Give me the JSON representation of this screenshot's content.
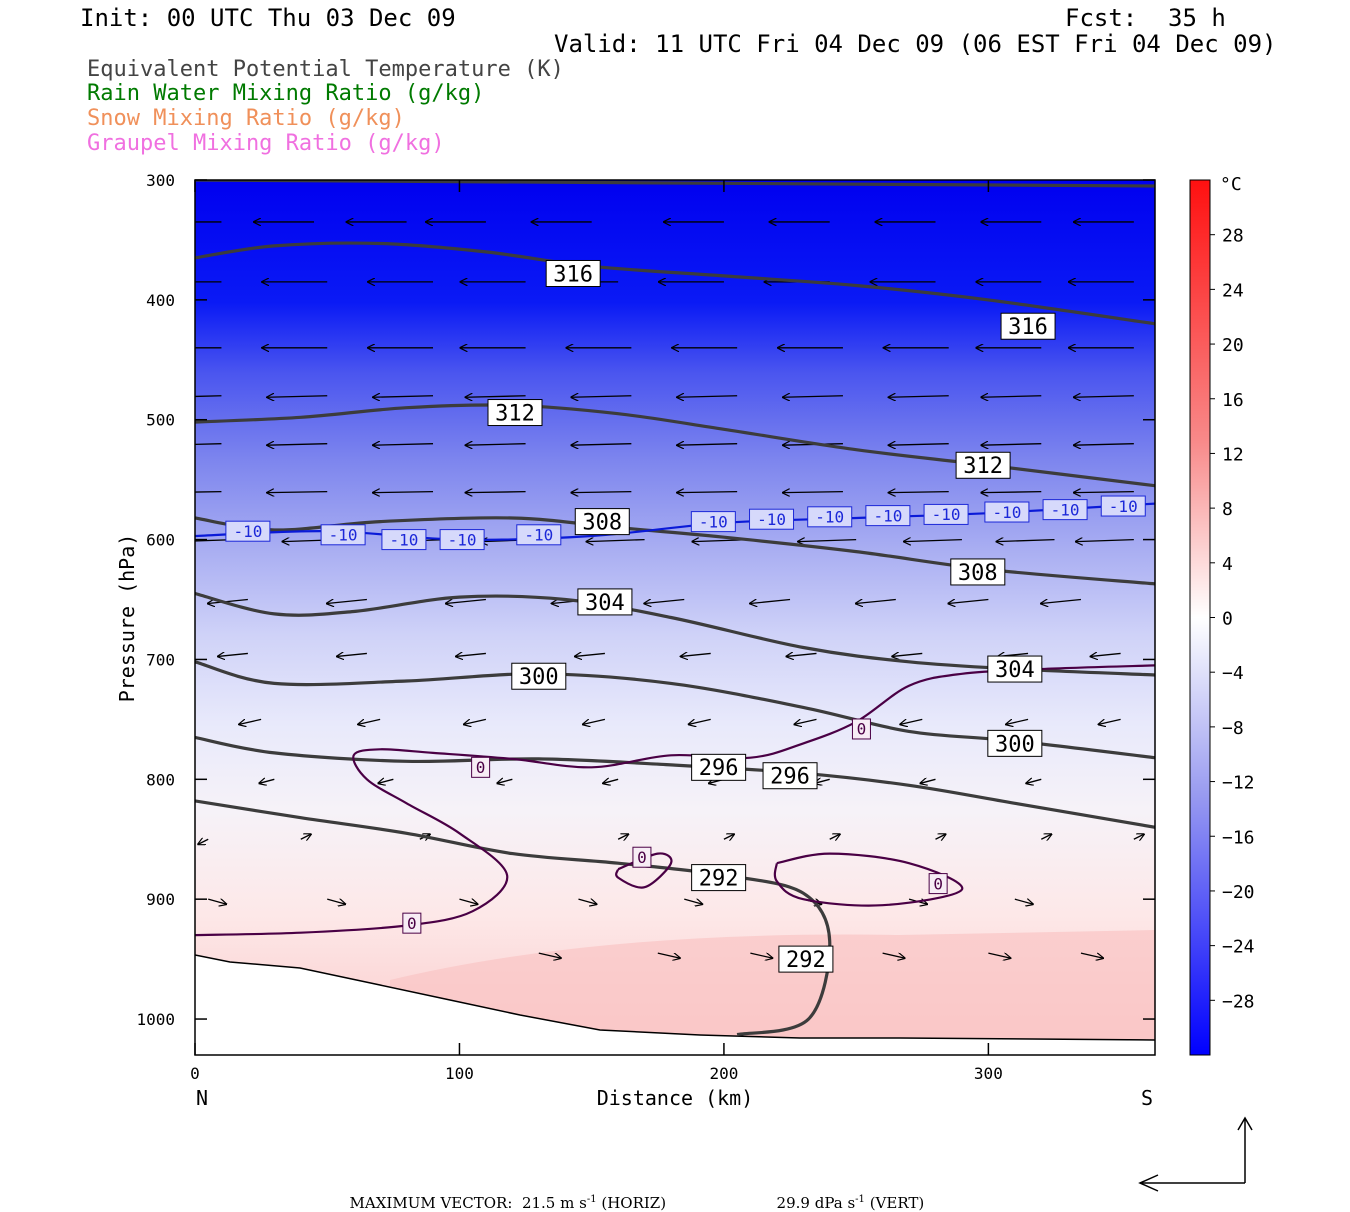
{
  "header": {
    "init": "Init: 00 UTC Thu 03 Dec 09",
    "fcst_label": "Fcst:",
    "fcst_value": "35 h",
    "valid": "Valid: 11 UTC Fri 04 Dec 09 (06 EST Fri 04 Dec 09)"
  },
  "legend": [
    {
      "text": "Equivalent Potential Temperature (K)",
      "color": "#444444"
    },
    {
      "text": "Rain Water Mixing Ratio (g/kg)",
      "color": "#007a00"
    },
    {
      "text": "Snow Mixing Ratio (g/kg)",
      "color": "#f0905a"
    },
    {
      "text": "Graupel Mixing Ratio (g/kg)",
      "color": "#f070e0"
    }
  ],
  "chart_data": {
    "type": "heatmap",
    "xlabel": "Distance (km)",
    "ylabel": "Pressure (hPa)",
    "xlim": [
      0,
      363
    ],
    "ylim": [
      300,
      1030
    ],
    "x_ticks": [
      0,
      100,
      200,
      300
    ],
    "y_ticks": [
      300,
      400,
      500,
      600,
      700,
      800,
      900,
      1000
    ],
    "left_end_label": "N",
    "right_end_label": "S",
    "colorbar": {
      "unit": "°C",
      "min": -32,
      "max": 32,
      "labels": [
        28,
        24,
        20,
        16,
        12,
        8,
        4,
        0,
        -4,
        -8,
        -12,
        -16,
        -20,
        -24,
        -28
      ]
    },
    "theta_e_contours": [
      {
        "value": 316,
        "points": [
          [
            0,
            365
          ],
          [
            30,
            355
          ],
          [
            70,
            353
          ],
          [
            110,
            360
          ],
          [
            150,
            372
          ],
          [
            200,
            380
          ],
          [
            250,
            388
          ],
          [
            300,
            400
          ],
          [
            363,
            420
          ]
        ]
      },
      {
        "value": 316,
        "points": [
          [
            0,
            300
          ],
          [
            363,
            305
          ]
        ]
      },
      {
        "value": 312,
        "points": [
          [
            0,
            502
          ],
          [
            40,
            498
          ],
          [
            80,
            490
          ],
          [
            120,
            488
          ],
          [
            160,
            495
          ],
          [
            200,
            508
          ],
          [
            250,
            525
          ],
          [
            300,
            538
          ],
          [
            363,
            555
          ]
        ]
      },
      {
        "value": 308,
        "points": [
          [
            0,
            582
          ],
          [
            30,
            592
          ],
          [
            70,
            585
          ],
          [
            120,
            582
          ],
          [
            160,
            590
          ],
          [
            200,
            598
          ],
          [
            250,
            610
          ],
          [
            300,
            625
          ],
          [
            363,
            637
          ]
        ]
      },
      {
        "value": 304,
        "points": [
          [
            0,
            645
          ],
          [
            30,
            662
          ],
          [
            60,
            660
          ],
          [
            100,
            648
          ],
          [
            140,
            650
          ],
          [
            180,
            665
          ],
          [
            230,
            690
          ],
          [
            270,
            702
          ],
          [
            310,
            708
          ],
          [
            363,
            713
          ]
        ]
      },
      {
        "value": 300,
        "points": [
          [
            0,
            702
          ],
          [
            30,
            720
          ],
          [
            80,
            718
          ],
          [
            130,
            712
          ],
          [
            180,
            720
          ],
          [
            230,
            740
          ],
          [
            270,
            760
          ],
          [
            310,
            768
          ],
          [
            363,
            782
          ]
        ]
      },
      {
        "value": 296,
        "points": [
          [
            0,
            765
          ],
          [
            30,
            778
          ],
          [
            80,
            785
          ],
          [
            130,
            783
          ],
          [
            180,
            788
          ],
          [
            230,
            795
          ],
          [
            270,
            805
          ],
          [
            310,
            820
          ],
          [
            363,
            840
          ]
        ]
      },
      {
        "value": 292,
        "points": [
          [
            0,
            818
          ],
          [
            40,
            832
          ],
          [
            80,
            845
          ],
          [
            120,
            862
          ],
          [
            160,
            870
          ],
          [
            200,
            880
          ],
          [
            230,
            895
          ],
          [
            240,
            935
          ],
          [
            232,
            1000
          ],
          [
            205,
            1013
          ]
        ]
      }
    ],
    "isotherms": [
      {
        "value": 0,
        "points": [
          [
            0,
            930
          ],
          [
            40,
            928
          ],
          [
            80,
            922
          ],
          [
            105,
            910
          ],
          [
            118,
            880
          ],
          [
            100,
            845
          ],
          [
            80,
            820
          ],
          [
            65,
            800
          ],
          [
            60,
            780
          ],
          [
            70,
            775
          ],
          [
            90,
            778
          ],
          [
            120,
            783
          ],
          [
            150,
            790
          ],
          [
            180,
            780
          ],
          [
            210,
            782
          ],
          [
            230,
            770
          ],
          [
            250,
            752
          ],
          [
            270,
            722
          ],
          [
            290,
            712
          ],
          [
            320,
            708
          ],
          [
            363,
            705
          ]
        ]
      },
      {
        "value": 0,
        "points": [
          [
            160,
            875
          ],
          [
            175,
            862
          ],
          [
            180,
            870
          ],
          [
            170,
            890
          ],
          [
            160,
            882
          ],
          [
            160,
            875
          ]
        ]
      },
      {
        "value": 0,
        "points": [
          [
            220,
            870
          ],
          [
            240,
            862
          ],
          [
            270,
            870
          ],
          [
            290,
            892
          ],
          [
            260,
            905
          ],
          [
            230,
            900
          ],
          [
            220,
            885
          ],
          [
            220,
            870
          ]
        ]
      },
      {
        "value": -10,
        "points": [
          [
            0,
            597
          ],
          [
            50,
            593
          ],
          [
            100,
            600
          ],
          [
            150,
            597
          ],
          [
            200,
            586
          ],
          [
            250,
            582
          ],
          [
            300,
            578
          ],
          [
            363,
            570
          ]
        ]
      }
    ],
    "contour_label_positions": [
      {
        "text": "316",
        "x": 143,
        "p": 378
      },
      {
        "text": "316",
        "x": 315,
        "p": 422
      },
      {
        "text": "312",
        "x": 121,
        "p": 494
      },
      {
        "text": "312",
        "x": 298,
        "p": 538
      },
      {
        "text": "308",
        "x": 154,
        "p": 585
      },
      {
        "text": "308",
        "x": 296,
        "p": 627
      },
      {
        "text": "304",
        "x": 155,
        "p": 652
      },
      {
        "text": "304",
        "x": 310,
        "p": 708
      },
      {
        "text": "300",
        "x": 130,
        "p": 714
      },
      {
        "text": "300",
        "x": 310,
        "p": 770
      },
      {
        "text": "296",
        "x": 198,
        "p": 790
      },
      {
        "text": "296",
        "x": 225,
        "p": 797
      },
      {
        "text": "292",
        "x": 198,
        "p": 882
      },
      {
        "text": "292",
        "x": 231,
        "p": 950
      },
      {
        "text": "0",
        "x": 108,
        "p": 790
      },
      {
        "text": "0",
        "x": 252,
        "p": 758
      },
      {
        "text": "0",
        "x": 169,
        "p": 865
      },
      {
        "text": "0",
        "x": 281,
        "p": 887
      },
      {
        "text": "0",
        "x": 82,
        "p": 920
      },
      {
        "text": "-10",
        "x": 20,
        "p": 593
      },
      {
        "text": "-10",
        "x": 56,
        "p": 596
      },
      {
        "text": "-10",
        "x": 79,
        "p": 600
      },
      {
        "text": "-10",
        "x": 101,
        "p": 600
      },
      {
        "text": "-10",
        "x": 130,
        "p": 596
      },
      {
        "text": "-10",
        "x": 196,
        "p": 585
      },
      {
        "text": "-10",
        "x": 218,
        "p": 583
      },
      {
        "text": "-10",
        "x": 240,
        "p": 581
      },
      {
        "text": "-10",
        "x": 262,
        "p": 580
      },
      {
        "text": "-10",
        "x": 284,
        "p": 579
      },
      {
        "text": "-10",
        "x": 307,
        "p": 577
      },
      {
        "text": "-10",
        "x": 329,
        "p": 575
      },
      {
        "text": "-10",
        "x": 351,
        "p": 572
      }
    ],
    "wind_vectors_note": "circulation vectors (u along section, omega)",
    "max_vector": {
      "label": "MAXIMUM VECTOR:",
      "horiz_value": "21.5",
      "horiz_unit": "m s",
      "horiz_suffix": "(HORIZ)",
      "vert_value": "29.9",
      "vert_unit": "dPa s",
      "vert_suffix": "(VERT)",
      "exp": "-1"
    }
  }
}
